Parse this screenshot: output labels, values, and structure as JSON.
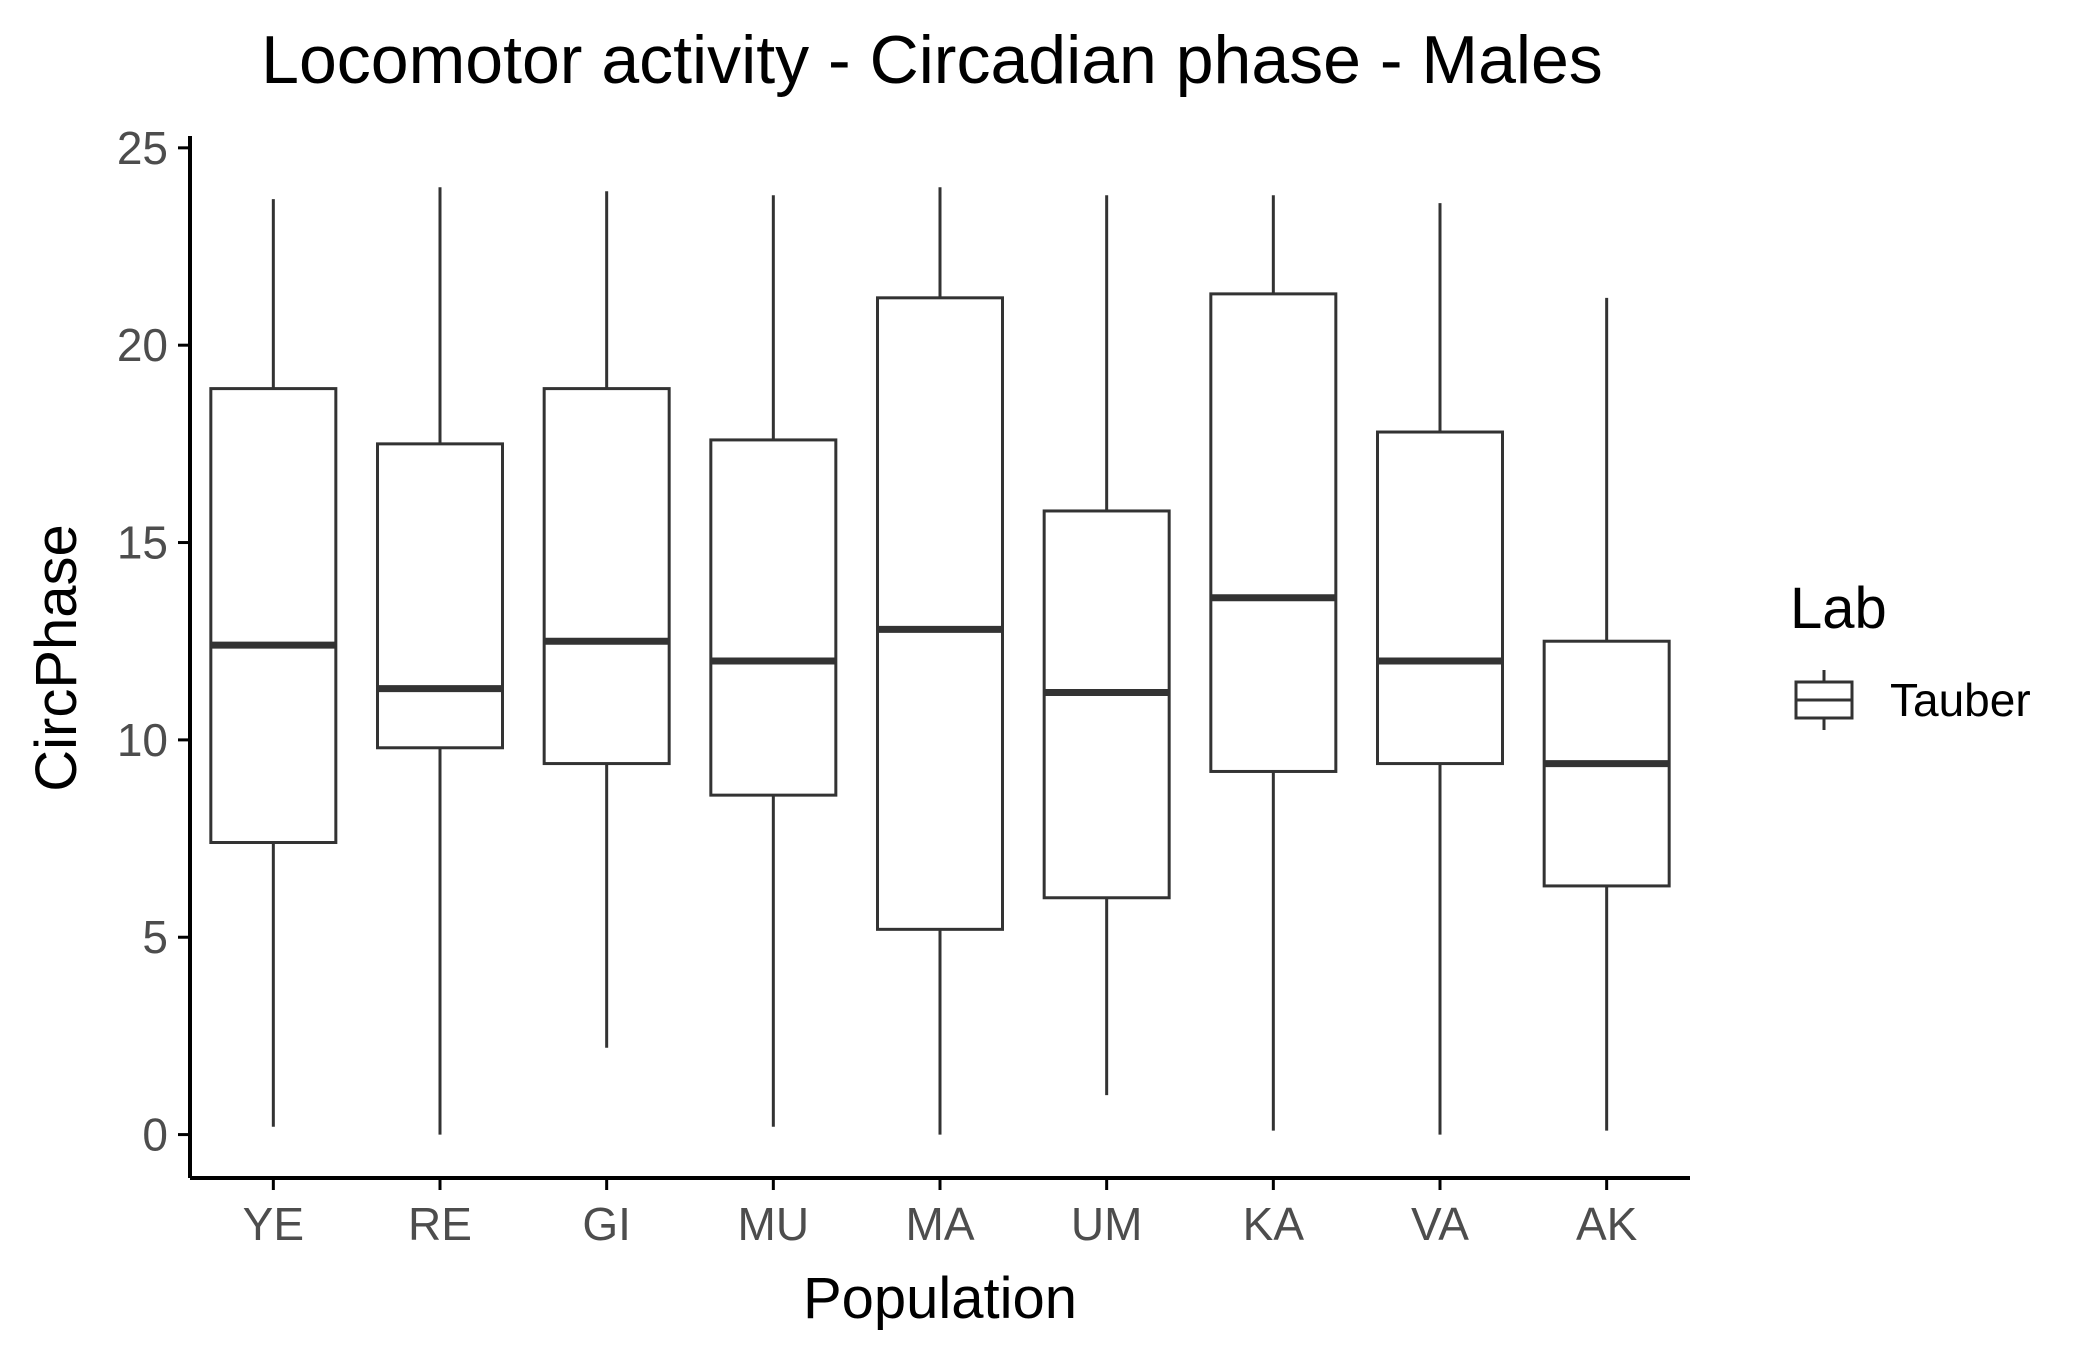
{
  "chart_data": {
    "type": "boxplot",
    "title": "Locomotor activity - Circadian phase - Males",
    "xlabel": "Population",
    "ylabel": "CircPhase",
    "ylim": [
      -1.1,
      25.3
    ],
    "yticks": [
      0,
      5,
      10,
      15,
      20,
      25
    ],
    "grid": false,
    "legend": {
      "title": "Lab",
      "entries": [
        "Tauber"
      ],
      "position": "right"
    },
    "colors": {
      "box_stroke": "#333333",
      "box_fill": "#ffffff",
      "axis": "#000000"
    },
    "categories": [
      "YE",
      "RE",
      "GI",
      "MU",
      "MA",
      "UM",
      "KA",
      "VA",
      "AK"
    ],
    "series": [
      {
        "name": "Tauber",
        "boxes": [
          {
            "category": "YE",
            "min": 0.2,
            "q1": 7.4,
            "median": 12.4,
            "q3": 18.9,
            "max": 23.7
          },
          {
            "category": "RE",
            "min": 0.0,
            "q1": 9.8,
            "median": 11.3,
            "q3": 17.5,
            "max": 24.0
          },
          {
            "category": "GI",
            "min": 2.2,
            "q1": 9.4,
            "median": 12.5,
            "q3": 18.9,
            "max": 23.9
          },
          {
            "category": "MU",
            "min": 0.2,
            "q1": 8.6,
            "median": 12.0,
            "q3": 17.6,
            "max": 23.8
          },
          {
            "category": "MA",
            "min": 0.0,
            "q1": 5.2,
            "median": 12.8,
            "q3": 21.2,
            "max": 24.0
          },
          {
            "category": "UM",
            "min": 1.0,
            "q1": 6.0,
            "median": 11.2,
            "q3": 15.8,
            "max": 23.8
          },
          {
            "category": "KA",
            "min": 0.1,
            "q1": 9.2,
            "median": 13.6,
            "q3": 21.3,
            "max": 23.8
          },
          {
            "category": "VA",
            "min": 0.0,
            "q1": 9.4,
            "median": 12.0,
            "q3": 17.8,
            "max": 23.6
          },
          {
            "category": "AK",
            "min": 0.1,
            "q1": 6.3,
            "median": 9.4,
            "q3": 12.5,
            "max": 21.2
          }
        ]
      }
    ]
  }
}
